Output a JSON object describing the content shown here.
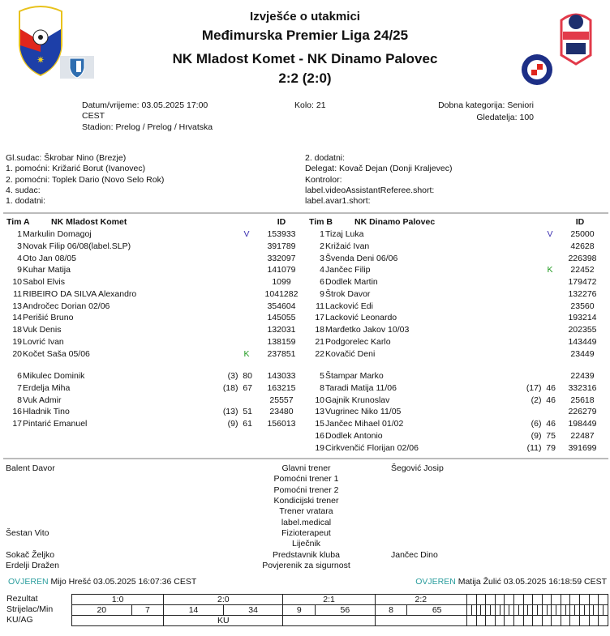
{
  "header": {
    "title": "Izvješće o utakmici",
    "league": "Međimurska Premier Liga 24/25",
    "match": "NK Mladost Komet - NK Dinamo Palovec",
    "score": "2:2 (2:0)"
  },
  "logos": {
    "federation": "Međimurski Nogometni Savez 1959",
    "league": "Premier",
    "home": "NK Mladost Komet crest",
    "away": "NK Dinamo Palovec crest"
  },
  "info": {
    "datetime": "Datum/vrijeme: 03.05.2025 17:00",
    "tz": "CEST",
    "stadium": "Stadion: Prelog / Prelog / Hrvatska",
    "round": "Kolo: 21",
    "category": "Dobna kategorija: Seniori",
    "spectators": "Gledatelja: 100"
  },
  "officials_left": [
    "Gl.sudac: Škrobar Nino (Brezje)",
    "1. pomoćni: Križarić Borut (Ivanovec)",
    "2. pomoćni: Toplek Dario (Novo Selo Rok)",
    "4. sudac:",
    "1. dodatni:"
  ],
  "officials_right": [
    "2. dodatni:",
    "Delegat: Kovač Dejan (Donji Kraljevec)",
    "Kontrolor:",
    "label.videoAssistantReferee.short:",
    "label.avar1.short:"
  ],
  "team_a": {
    "label": "Tim A",
    "name": "NK Mladost Komet",
    "id_header": "ID",
    "starters": [
      {
        "no": "1",
        "name": "Markulin Domagoj",
        "mark": "V",
        "id": "153933"
      },
      {
        "no": "3",
        "name": "Novak Filip 06/08(label.SLP)",
        "mark": "",
        "id": "391789"
      },
      {
        "no": "4",
        "name": "Oto Jan 08/05",
        "mark": "",
        "id": "332097"
      },
      {
        "no": "9",
        "name": "Kuhar Matija",
        "mark": "",
        "id": "141079"
      },
      {
        "no": "10",
        "name": "Sabol Elvis",
        "mark": "",
        "id": "1099"
      },
      {
        "no": "11",
        "name": "RIBEIRO DA SILVA Alexandro",
        "mark": "",
        "id": "1041282"
      },
      {
        "no": "13",
        "name": "Andročec Dorian 02/06",
        "mark": "",
        "id": "354604"
      },
      {
        "no": "14",
        "name": "Perišić Bruno",
        "mark": "",
        "id": "145055"
      },
      {
        "no": "18",
        "name": "Vuk Denis",
        "mark": "",
        "id": "132031"
      },
      {
        "no": "19",
        "name": "Lovrić Ivan",
        "mark": "",
        "id": "138159"
      },
      {
        "no": "20",
        "name": "Kočet Saša 05/06",
        "mark": "K",
        "id": "237851"
      }
    ],
    "subs": [
      {
        "no": "6",
        "name": "Mikulec Dominik",
        "entry": "(3)  80",
        "id": "143033"
      },
      {
        "no": "7",
        "name": "Erdelja Miha",
        "entry": "(18)  67",
        "id": "163215"
      },
      {
        "no": "8",
        "name": "Vuk Admir",
        "entry": "",
        "id": "25557"
      },
      {
        "no": "16",
        "name": "Hladnik Tino",
        "entry": "(13)  51",
        "id": "23480"
      },
      {
        "no": "17",
        "name": "Pintarić Emanuel",
        "entry": "(9)  61",
        "id": "156013"
      }
    ]
  },
  "team_b": {
    "label": "Tim B",
    "name": "NK Dinamo Palovec",
    "id_header": "ID",
    "starters": [
      {
        "no": "1",
        "name": "Tizaj Luka",
        "mark": "V",
        "id": "25000"
      },
      {
        "no": "2",
        "name": "Križaić Ivan",
        "mark": "",
        "id": "42628"
      },
      {
        "no": "3",
        "name": "Švenda Deni 06/06",
        "mark": "",
        "id": "226398"
      },
      {
        "no": "4",
        "name": "Jančec Filip",
        "mark": "K",
        "id": "22452"
      },
      {
        "no": "6",
        "name": "Dodlek Martin",
        "mark": "",
        "id": "179472"
      },
      {
        "no": "9",
        "name": "Štrok Davor",
        "mark": "",
        "id": "132276"
      },
      {
        "no": "11",
        "name": "Lacković Edi",
        "mark": "",
        "id": "23560"
      },
      {
        "no": "17",
        "name": "Lacković Leonardo",
        "mark": "",
        "id": "193214"
      },
      {
        "no": "18",
        "name": "Marđetko Jakov 10/03",
        "mark": "",
        "id": "202355"
      },
      {
        "no": "21",
        "name": "Podgorelec Karlo",
        "mark": "",
        "id": "143449"
      },
      {
        "no": "22",
        "name": "Kovačić Deni",
        "mark": "",
        "id": "23449"
      }
    ],
    "subs": [
      {
        "no": "5",
        "name": "Štampar Marko",
        "entry": "",
        "id": "22439"
      },
      {
        "no": "8",
        "name": "Taradi Matija 11/06",
        "entry": "(17)  46",
        "id": "332316"
      },
      {
        "no": "10",
        "name": "Gajnik Krunoslav",
        "entry": "(2)  46",
        "id": "25618"
      },
      {
        "no": "13",
        "name": "Vugrinec Niko 11/05",
        "entry": "",
        "id": "226279"
      },
      {
        "no": "15",
        "name": "Jančec Mihael 01/02",
        "entry": "(6)  46",
        "id": "198449"
      },
      {
        "no": "16",
        "name": "Dodlek Antonio",
        "entry": "(9)  75",
        "id": "22487"
      },
      {
        "no": "19",
        "name": "Cirkvenčić Florijan 02/06",
        "entry": "(11)  79",
        "id": "391699"
      }
    ]
  },
  "staff": [
    {
      "role": "Glavni trener",
      "a": "Balent Davor",
      "b": "Šegović Josip"
    },
    {
      "role": "Pomoćni trener 1",
      "a": "",
      "b": ""
    },
    {
      "role": "Pomoćni trener 2",
      "a": "",
      "b": ""
    },
    {
      "role": "Kondicijski trener",
      "a": "",
      "b": ""
    },
    {
      "role": "Trener vratara",
      "a": "",
      "b": ""
    },
    {
      "role": "label.medical",
      "a": "",
      "b": ""
    },
    {
      "role": "Fizioterapeut",
      "a": "Šestan Vito",
      "b": ""
    },
    {
      "role": "Liječnik",
      "a": "",
      "b": ""
    },
    {
      "role": "Predstavnik kluba",
      "a": "Sokač Željko",
      "b": "Jančec Dino"
    },
    {
      "role": "Povjerenik za sigurnost",
      "a": "Erdelji Dražen",
      "b": ""
    }
  ],
  "verified": {
    "status": "OVJEREN",
    "left": "Mijo Hrešć 03.05.2025 16:07:36 CEST",
    "right": "Matija Žulić 03.05.2025 16:18:59 CEST"
  },
  "scoring": {
    "labels": [
      "Rezultat",
      "Strijelac/Min",
      "KU/AG"
    ],
    "goals": [
      {
        "result": "1:0",
        "scorer": "20",
        "minute": "7",
        "type": ""
      },
      {
        "result": "2:0",
        "scorer": "14",
        "minute": "34",
        "type": "KU"
      },
      {
        "result": "2:1",
        "scorer": "9",
        "minute": "56",
        "type": ""
      },
      {
        "result": "2:2",
        "scorer": "8",
        "minute": "65",
        "type": ""
      }
    ],
    "columns": 19
  },
  "colors": {
    "captain": "#1f9a1f",
    "goalkeeper": "#3b2fb0",
    "verified": "#2a9d9d"
  }
}
